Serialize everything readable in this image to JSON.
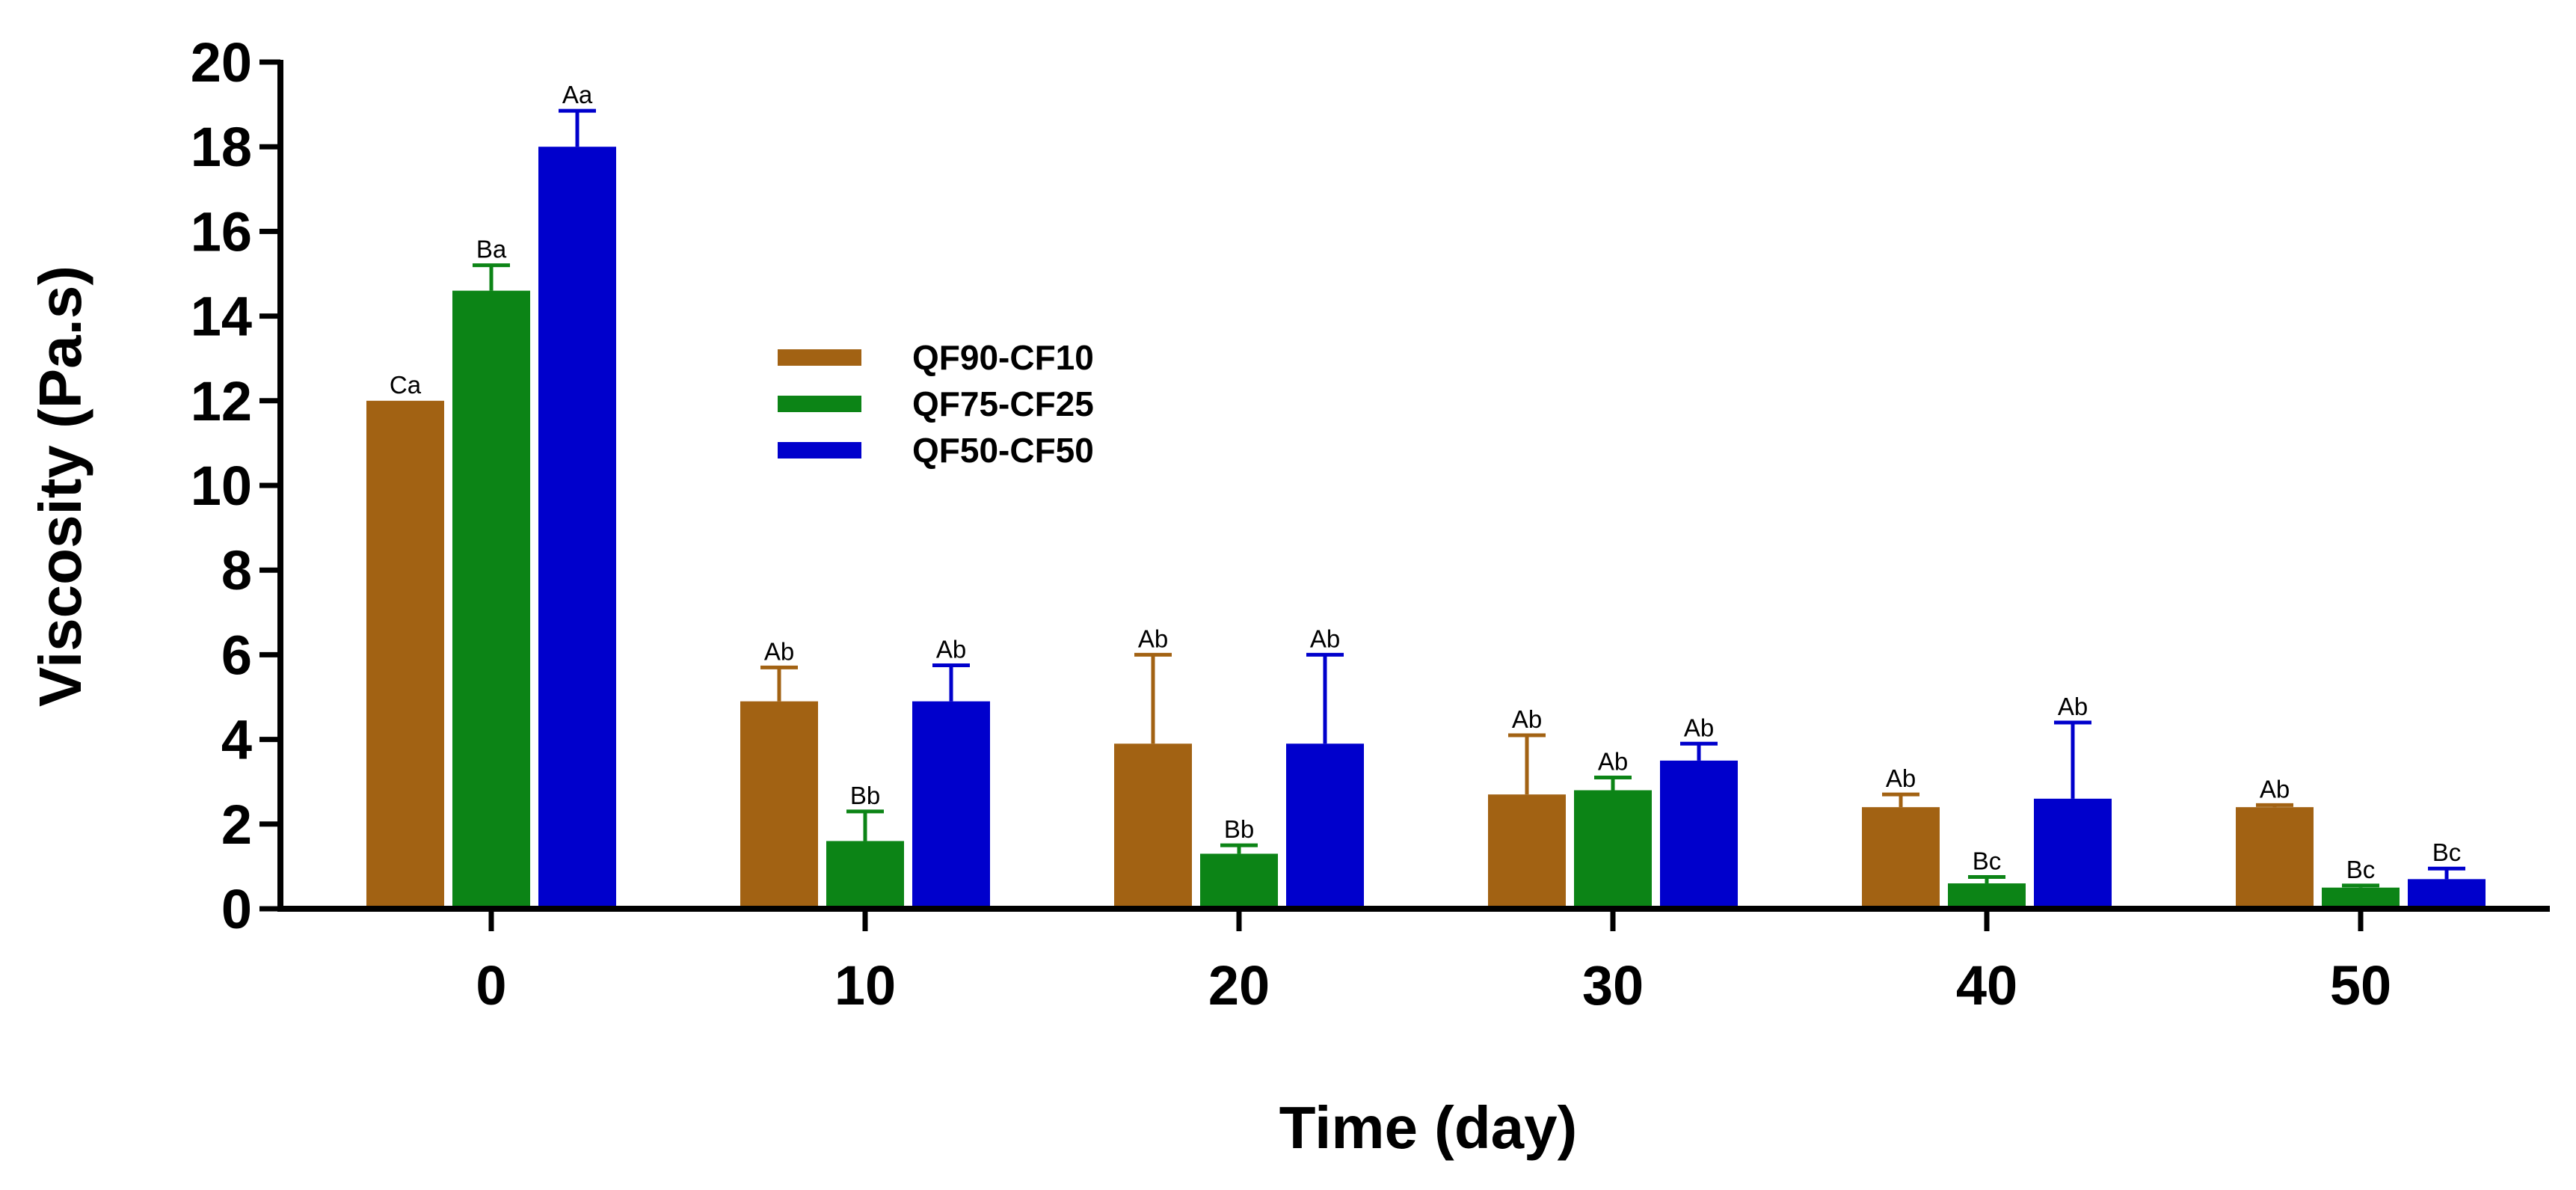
{
  "chart_data": {
    "type": "bar",
    "title": "",
    "xlabel": "Time (day)",
    "ylabel": "Viscosity (Pa.s)",
    "ylim": [
      0,
      20
    ],
    "yticks": [
      "0",
      "2",
      "4",
      "6",
      "8",
      "10",
      "12",
      "14",
      "16",
      "18",
      "20"
    ],
    "categories": [
      "0",
      "10",
      "20",
      "30",
      "40",
      "50"
    ],
    "legend_position": "upper-center",
    "series": [
      {
        "name": "QF90-CF10",
        "color": "#A26213",
        "values": [
          12.0,
          4.9,
          3.9,
          2.7,
          2.4,
          2.4
        ],
        "errors": [
          0.0,
          0.8,
          2.1,
          1.4,
          0.3,
          0.05
        ],
        "labels": [
          "Ca",
          "Ab",
          "Ab",
          "Ab",
          "Ab",
          "Ab"
        ]
      },
      {
        "name": "QF75-CF25",
        "color": "#0C8416",
        "values": [
          14.6,
          1.6,
          1.3,
          2.8,
          0.6,
          0.5
        ],
        "errors": [
          0.6,
          0.7,
          0.2,
          0.3,
          0.15,
          0.05
        ],
        "labels": [
          "Ba",
          "Bb",
          "Bb",
          "Ab",
          "Bc",
          "Bc"
        ]
      },
      {
        "name": "QF50-CF50",
        "color": "#0000CC",
        "values": [
          18.0,
          4.9,
          3.9,
          3.5,
          2.6,
          0.7
        ],
        "errors": [
          0.85,
          0.85,
          2.1,
          0.4,
          1.8,
          0.25
        ],
        "labels": [
          "Aa",
          "Ab",
          "Ab",
          "Ab",
          "Ab",
          "Bc"
        ]
      }
    ]
  }
}
